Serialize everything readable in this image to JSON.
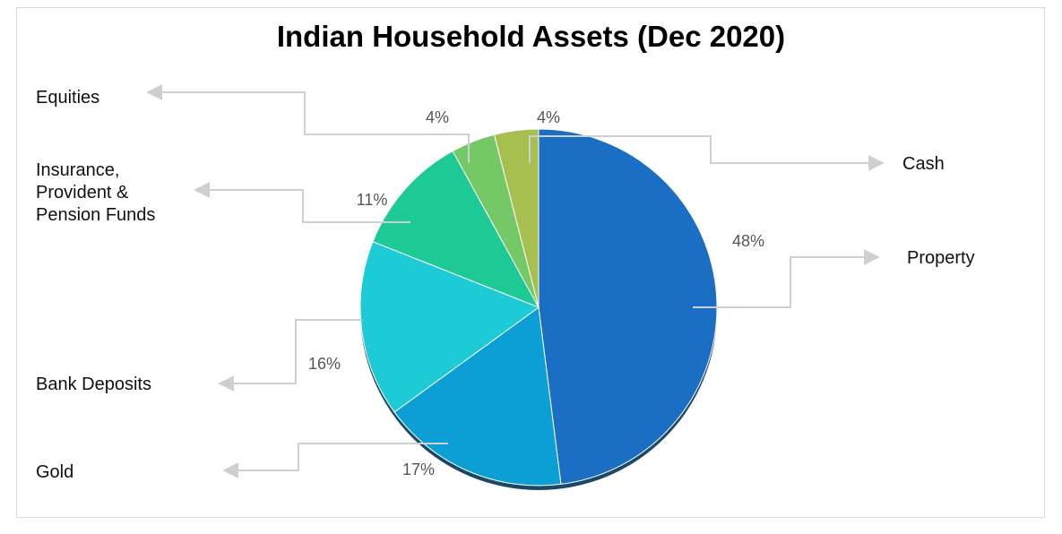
{
  "chart_data": {
    "type": "pie",
    "title": "Indian Household Assets (Dec 2020)",
    "categories": [
      "Property",
      "Gold",
      "Bank Deposits",
      "Insurance, Provident & Pension Funds",
      "Equities",
      "Cash"
    ],
    "values": [
      48,
      17,
      16,
      11,
      4,
      4
    ],
    "value_labels": [
      "48%",
      "17%",
      "16%",
      "11%",
      "4%",
      "4%"
    ],
    "colors": [
      "#1a6ec4",
      "#0c9fd6",
      "#1ccbd6",
      "#1dca95",
      "#74c866",
      "#a7bf4f"
    ]
  }
}
